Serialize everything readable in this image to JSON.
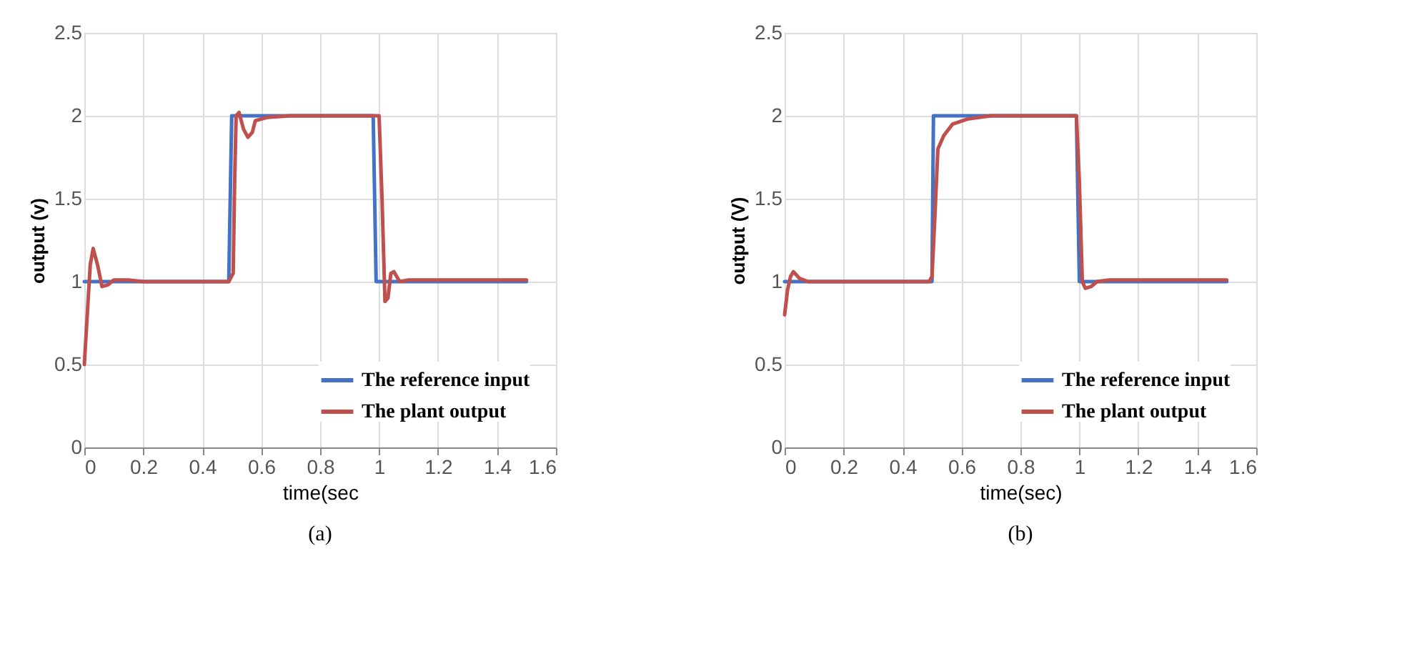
{
  "chart_data": [
    {
      "type": "line",
      "xlabel": "time(sec",
      "ylabel": "output (v)",
      "xlim": [
        0,
        1.6
      ],
      "xticks": [
        0,
        0.2,
        0.4,
        0.6,
        0.8,
        1,
        1.2,
        1.4,
        1.6
      ],
      "ylim": [
        0,
        2.5
      ],
      "yticks": [
        0,
        0.5,
        1,
        1.5,
        2,
        2.5
      ],
      "grid": true,
      "legend": "bottom right",
      "annotations": [
        "(a)"
      ],
      "series": [
        {
          "name": "The reference input",
          "color": "#4472c4",
          "x": [
            0,
            0.49,
            0.5,
            0.98,
            0.99,
            1.5
          ],
          "values": [
            1,
            1,
            2,
            2,
            1,
            1
          ]
        },
        {
          "name": "The plant output",
          "color": "#c0504d",
          "x": [
            0,
            0.02,
            0.03,
            0.045,
            0.06,
            0.08,
            0.1,
            0.15,
            0.2,
            0.49,
            0.505,
            0.51,
            0.515,
            0.525,
            0.54,
            0.555,
            0.57,
            0.58,
            0.62,
            0.7,
            1.0,
            1.01,
            1.02,
            1.03,
            1.04,
            1.05,
            1.07,
            1.1,
            1.5
          ],
          "values": [
            0.5,
            1.1,
            1.2,
            1.1,
            0.97,
            0.98,
            1.01,
            1.01,
            1.0,
            1.0,
            1.05,
            1.6,
            2.0,
            2.02,
            1.92,
            1.87,
            1.9,
            1.97,
            1.99,
            2.0,
            2.0,
            1.5,
            0.88,
            0.9,
            1.05,
            1.06,
            1.0,
            1.01,
            1.01
          ]
        }
      ]
    },
    {
      "type": "line",
      "xlabel": "time(sec)",
      "ylabel": "output (V)",
      "xlim": [
        0,
        1.6
      ],
      "xticks": [
        0,
        0.2,
        0.4,
        0.6,
        0.8,
        1,
        1.2,
        1.4,
        1.6
      ],
      "ylim": [
        0,
        2.5
      ],
      "yticks": [
        0,
        0.5,
        1,
        1.5,
        2,
        2.5
      ],
      "grid": true,
      "legend": "bottom right",
      "annotations": [
        "(b)"
      ],
      "series": [
        {
          "name": "The reference input",
          "color": "#4472c4",
          "x": [
            0,
            0.5,
            0.505,
            0.99,
            1.0,
            1.5
          ],
          "values": [
            1,
            1,
            2,
            2,
            1,
            1
          ]
        },
        {
          "name": "The plant output",
          "color": "#c0504d",
          "x": [
            0,
            0.01,
            0.02,
            0.03,
            0.05,
            0.08,
            0.49,
            0.5,
            0.51,
            0.52,
            0.54,
            0.57,
            0.62,
            0.7,
            0.99,
            1.0,
            1.01,
            1.02,
            1.04,
            1.06,
            1.1,
            1.5
          ],
          "values": [
            0.8,
            0.95,
            1.03,
            1.06,
            1.02,
            1.0,
            1.0,
            1.03,
            1.4,
            1.8,
            1.88,
            1.95,
            1.98,
            2.0,
            2.0,
            1.6,
            1.0,
            0.96,
            0.97,
            1.0,
            1.01,
            1.01
          ]
        }
      ]
    }
  ]
}
